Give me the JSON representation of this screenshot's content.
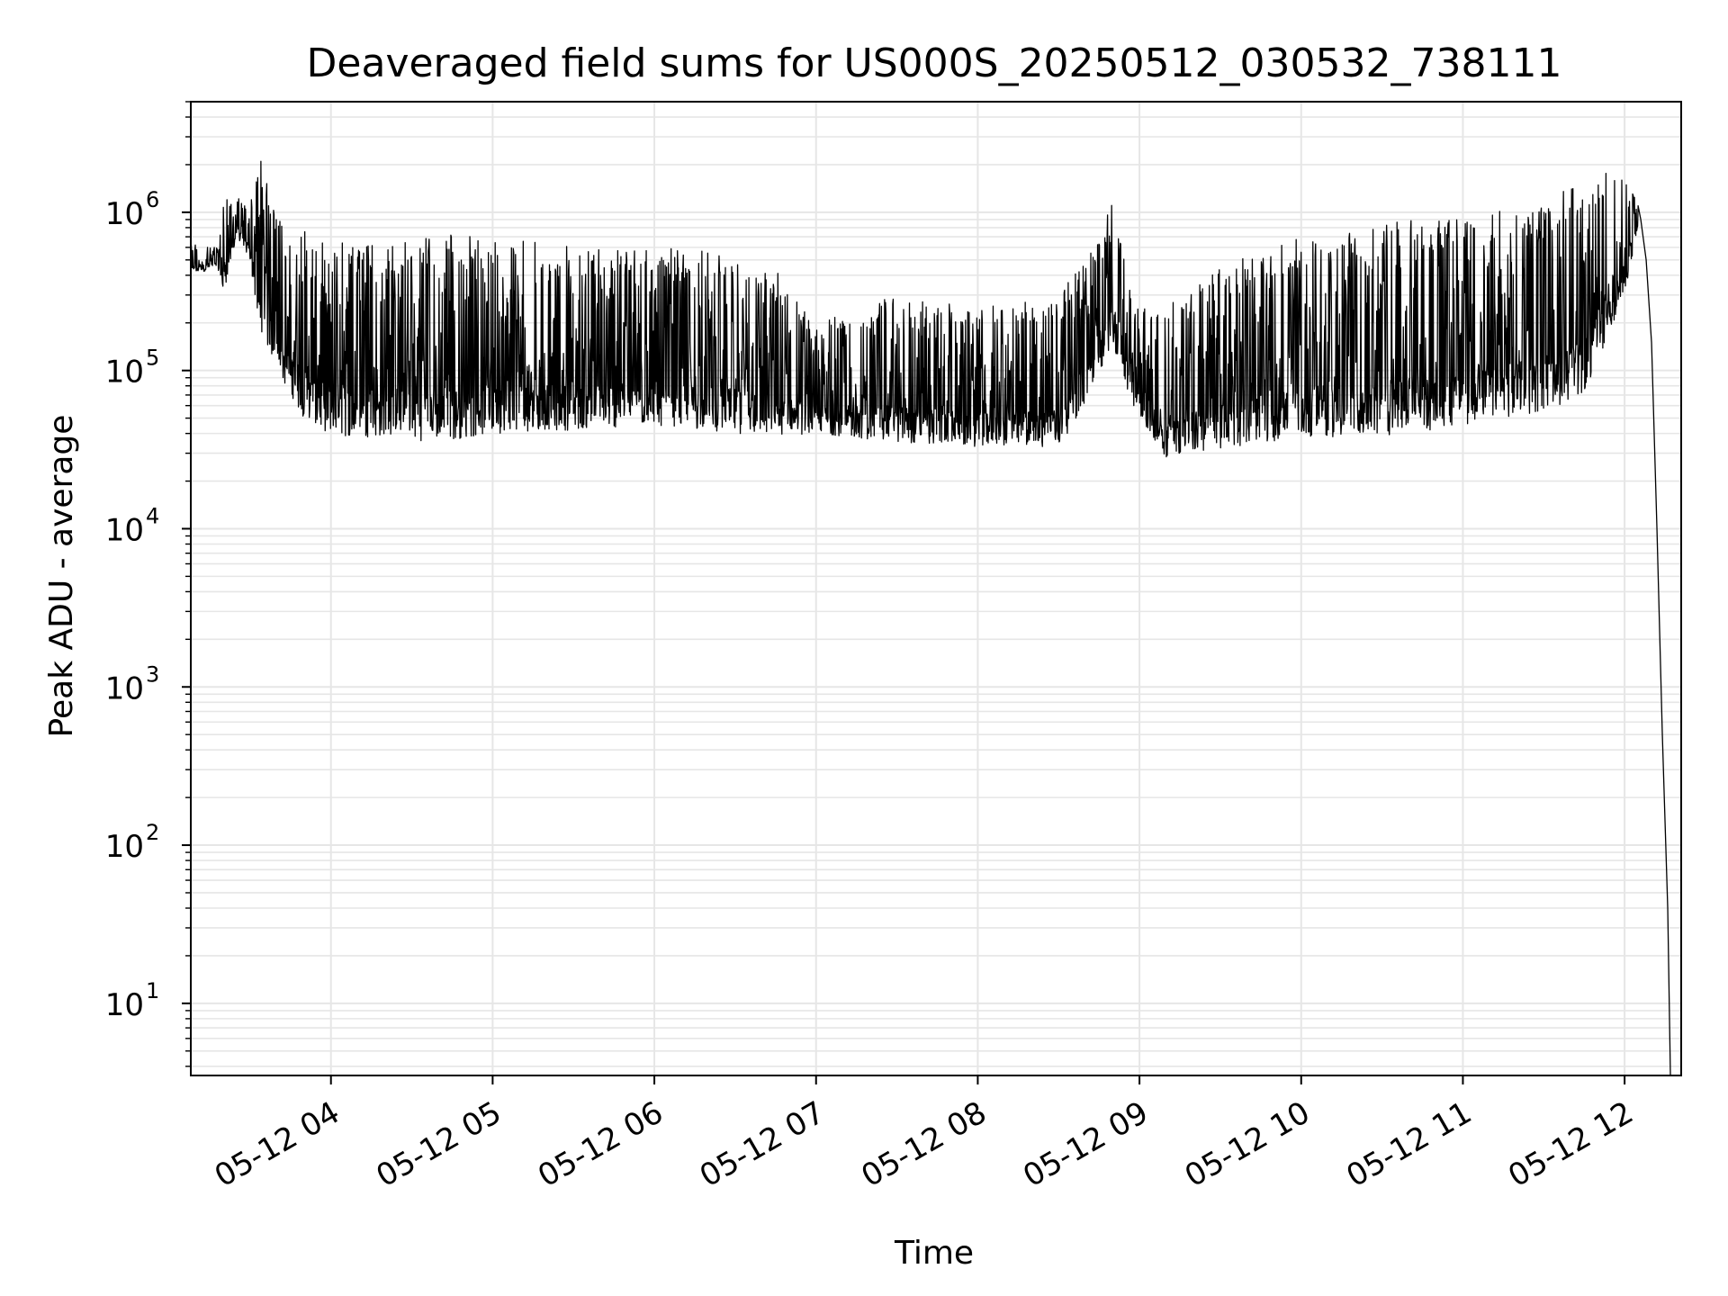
{
  "chart_data": {
    "type": "line",
    "title": "Deaveraged field sums for US000S_20250512_030532_738111",
    "xlabel": "Time",
    "ylabel": "Peak ADU - average",
    "yscale": "log",
    "xlim": [
      "2025-05-12 03:08",
      "2025-05-12 12:21"
    ],
    "ylim": [
      3.5,
      5000000
    ],
    "grid": true,
    "legend": "none",
    "line_color": "#000000",
    "grid_color": "#e6e6e6",
    "x_ticks": [
      {
        "value": "2025-05-12 04:00",
        "label": "05-12 04"
      },
      {
        "value": "2025-05-12 05:00",
        "label": "05-12 05"
      },
      {
        "value": "2025-05-12 06:00",
        "label": "05-12 06"
      },
      {
        "value": "2025-05-12 07:00",
        "label": "05-12 07"
      },
      {
        "value": "2025-05-12 08:00",
        "label": "05-12 08"
      },
      {
        "value": "2025-05-12 09:00",
        "label": "05-12 09"
      },
      {
        "value": "2025-05-12 10:00",
        "label": "05-12 10"
      },
      {
        "value": "2025-05-12 11:00",
        "label": "05-12 11"
      },
      {
        "value": "2025-05-12 12:00",
        "label": "05-12 12"
      }
    ],
    "y_ticks": [
      {
        "value": 10,
        "base": "10",
        "exp": "1"
      },
      {
        "value": 100,
        "base": "10",
        "exp": "2"
      },
      {
        "value": 1000,
        "base": "10",
        "exp": "3"
      },
      {
        "value": 10000,
        "base": "10",
        "exp": "4"
      },
      {
        "value": 100000,
        "base": "10",
        "exp": "5"
      },
      {
        "value": 1000000,
        "base": "10",
        "exp": "6"
      }
    ],
    "series": [
      {
        "envelope": [
          {
            "t": "2025-05-12 03:08",
            "low": 400000,
            "high": 650000
          },
          {
            "t": "2025-05-12 03:18",
            "low": 450000,
            "high": 600000
          },
          {
            "t": "2025-05-12 03:20",
            "low": 300000,
            "high": 1200000
          },
          {
            "t": "2025-05-12 03:25",
            "low": 700000,
            "high": 1300000
          },
          {
            "t": "2025-05-12 03:30",
            "low": 500000,
            "high": 1100000
          },
          {
            "t": "2025-05-12 03:33",
            "low": 200000,
            "high": 2600000
          },
          {
            "t": "2025-05-12 03:40",
            "low": 100000,
            "high": 900000
          },
          {
            "t": "2025-05-12 03:50",
            "low": 50000,
            "high": 800000
          },
          {
            "t": "2025-05-12 04:00",
            "low": 38000,
            "high": 700000
          },
          {
            "t": "2025-05-12 04:20",
            "low": 38000,
            "high": 600000
          },
          {
            "t": "2025-05-12 04:40",
            "low": 35000,
            "high": 750000
          },
          {
            "t": "2025-05-12 05:00",
            "low": 40000,
            "high": 700000
          },
          {
            "t": "2025-05-12 05:30",
            "low": 42000,
            "high": 600000
          },
          {
            "t": "2025-05-12 06:00",
            "low": 45000,
            "high": 600000
          },
          {
            "t": "2025-05-12 06:30",
            "low": 40000,
            "high": 550000
          },
          {
            "t": "2025-05-12 06:45",
            "low": 38000,
            "high": 450000
          },
          {
            "t": "2025-05-12 07:00",
            "low": 40000,
            "high": 200000
          },
          {
            "t": "2025-05-12 07:30",
            "low": 35000,
            "high": 300000
          },
          {
            "t": "2025-05-12 08:00",
            "low": 33000,
            "high": 250000
          },
          {
            "t": "2025-05-12 08:30",
            "low": 33000,
            "high": 300000
          },
          {
            "t": "2025-05-12 08:40",
            "low": 60000,
            "high": 500000
          },
          {
            "t": "2025-05-12 08:50",
            "low": 150000,
            "high": 1200000
          },
          {
            "t": "2025-05-12 08:57",
            "low": 60000,
            "high": 300000
          },
          {
            "t": "2025-05-12 09:10",
            "low": 28000,
            "high": 250000
          },
          {
            "t": "2025-05-12 09:30",
            "low": 32000,
            "high": 450000
          },
          {
            "t": "2025-05-12 10:00",
            "low": 38000,
            "high": 700000
          },
          {
            "t": "2025-05-12 10:30",
            "low": 38000,
            "high": 850000
          },
          {
            "t": "2025-05-12 11:00",
            "low": 45000,
            "high": 950000
          },
          {
            "t": "2025-05-12 11:30",
            "low": 55000,
            "high": 1100000
          },
          {
            "t": "2025-05-12 11:45",
            "low": 70000,
            "high": 1700000
          },
          {
            "t": "2025-05-12 12:00",
            "low": 300000,
            "high": 2000000
          },
          {
            "t": "2025-05-12 12:05",
            "low": 800000,
            "high": 1200000
          }
        ],
        "tail": [
          {
            "t": "2025-05-12 12:05",
            "y": 1100000
          },
          {
            "t": "2025-05-12 12:06",
            "y": 900000
          },
          {
            "t": "2025-05-12 12:08",
            "y": 500000
          },
          {
            "t": "2025-05-12 12:10",
            "y": 150000
          },
          {
            "t": "2025-05-12 12:12",
            "y": 10000
          },
          {
            "t": "2025-05-12 12:14",
            "y": 500
          },
          {
            "t": "2025-05-12 12:16",
            "y": 40
          },
          {
            "t": "2025-05-12 12:17",
            "y": 3.5
          }
        ]
      }
    ]
  }
}
